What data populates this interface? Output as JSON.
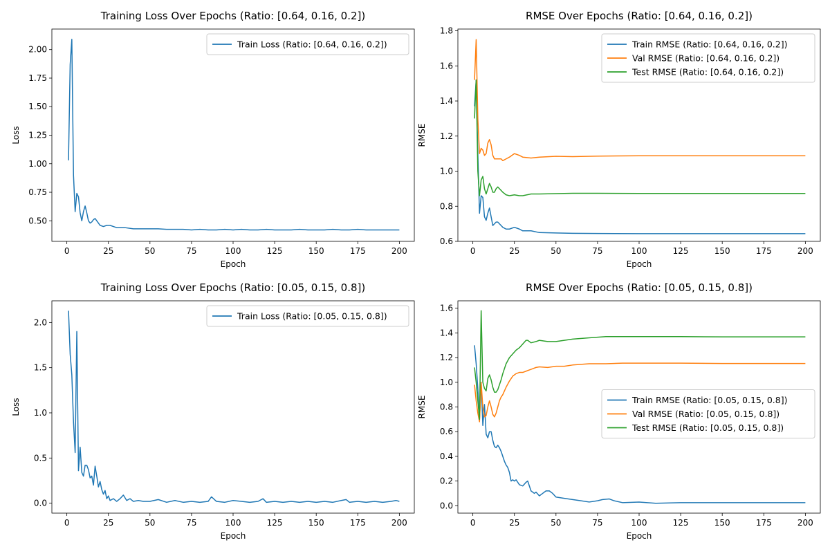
{
  "chart_data": [
    {
      "type": "line",
      "title": "Training Loss Over Epochs (Ratio: [0.64, 0.16, 0.2])",
      "xlabel": "Epoch",
      "ylabel": "Loss",
      "xlim": [
        -9,
        209
      ],
      "ylim": [
        0.32,
        2.18
      ],
      "xticks": [
        0,
        25,
        50,
        75,
        100,
        125,
        150,
        175,
        200
      ],
      "xtick_labels": [
        "0",
        "25",
        "50",
        "75",
        "100",
        "125",
        "150",
        "175",
        "200"
      ],
      "yticks": [
        0.5,
        0.75,
        1.0,
        1.25,
        1.5,
        1.75,
        2.0
      ],
      "ytick_labels": [
        "0.50",
        "0.75",
        "1.00",
        "1.25",
        "1.50",
        "1.75",
        "2.00"
      ],
      "legend_position": "top-right",
      "series": [
        {
          "name": "Train Loss (Ratio: [0.64, 0.16, 0.2])",
          "color": "#1f77b4",
          "x": [
            1,
            2,
            3,
            4,
            5,
            6,
            7,
            8,
            9,
            10,
            11,
            12,
            13,
            14,
            15,
            16,
            17,
            18,
            19,
            20,
            22,
            24,
            26,
            28,
            30,
            35,
            40,
            45,
            50,
            55,
            60,
            65,
            70,
            75,
            80,
            85,
            90,
            95,
            100,
            105,
            110,
            115,
            120,
            125,
            130,
            135,
            140,
            145,
            150,
            155,
            160,
            165,
            170,
            175,
            180,
            185,
            190,
            195,
            200
          ],
          "y": [
            1.03,
            1.87,
            2.09,
            0.9,
            0.58,
            0.74,
            0.71,
            0.57,
            0.5,
            0.58,
            0.63,
            0.57,
            0.5,
            0.48,
            0.49,
            0.51,
            0.52,
            0.5,
            0.48,
            0.46,
            0.45,
            0.46,
            0.46,
            0.45,
            0.44,
            0.44,
            0.43,
            0.43,
            0.43,
            0.43,
            0.425,
            0.425,
            0.425,
            0.42,
            0.425,
            0.42,
            0.42,
            0.425,
            0.42,
            0.425,
            0.42,
            0.42,
            0.425,
            0.42,
            0.42,
            0.42,
            0.425,
            0.42,
            0.42,
            0.42,
            0.425,
            0.42,
            0.42,
            0.425,
            0.42,
            0.42,
            0.42,
            0.42,
            0.42
          ]
        }
      ]
    },
    {
      "type": "line",
      "title": "RMSE Over Epochs (Ratio: [0.64, 0.16, 0.2])",
      "xlabel": "Epoch",
      "ylabel": "RMSE",
      "xlim": [
        -9,
        209
      ],
      "ylim": [
        0.6,
        1.81
      ],
      "xticks": [
        0,
        25,
        50,
        75,
        100,
        125,
        150,
        175,
        200
      ],
      "xtick_labels": [
        "0",
        "25",
        "50",
        "75",
        "100",
        "125",
        "150",
        "175",
        "200"
      ],
      "yticks": [
        0.6,
        0.8,
        1.0,
        1.2,
        1.4,
        1.6,
        1.8
      ],
      "ytick_labels": [
        "0.6",
        "0.8",
        "1.0",
        "1.2",
        "1.4",
        "1.6",
        "1.8"
      ],
      "legend_position": "top-right",
      "series": [
        {
          "name": "Train RMSE (Ratio: [0.64, 0.16, 0.2])",
          "color": "#1f77b4",
          "x": [
            1,
            2,
            3,
            4,
            5,
            6,
            7,
            8,
            9,
            10,
            11,
            12,
            13,
            14,
            15,
            16,
            17,
            18,
            20,
            22,
            25,
            28,
            30,
            35,
            40,
            50,
            60,
            75,
            100,
            125,
            150,
            175,
            200
          ],
          "y": [
            1.37,
            1.52,
            1.1,
            0.76,
            0.86,
            0.85,
            0.74,
            0.72,
            0.76,
            0.79,
            0.74,
            0.69,
            0.7,
            0.71,
            0.71,
            0.7,
            0.69,
            0.68,
            0.67,
            0.67,
            0.68,
            0.67,
            0.66,
            0.66,
            0.65,
            0.648,
            0.646,
            0.645,
            0.644,
            0.644,
            0.644,
            0.644,
            0.644
          ]
        },
        {
          "name": "Val RMSE (Ratio: [0.64, 0.16, 0.2])",
          "color": "#ff7f0e",
          "x": [
            1,
            2,
            3,
            4,
            5,
            6,
            7,
            8,
            9,
            10,
            11,
            12,
            13,
            14,
            15,
            16,
            17,
            18,
            20,
            22,
            25,
            28,
            30,
            35,
            40,
            50,
            60,
            75,
            100,
            125,
            150,
            175,
            200
          ],
          "y": [
            1.52,
            1.75,
            1.3,
            1.1,
            1.13,
            1.12,
            1.09,
            1.1,
            1.16,
            1.18,
            1.15,
            1.09,
            1.07,
            1.07,
            1.07,
            1.07,
            1.07,
            1.06,
            1.07,
            1.08,
            1.1,
            1.09,
            1.08,
            1.075,
            1.08,
            1.085,
            1.083,
            1.086,
            1.088,
            1.088,
            1.088,
            1.088,
            1.088
          ]
        },
        {
          "name": "Test RMSE (Ratio: [0.64, 0.16, 0.2])",
          "color": "#2ca02c",
          "x": [
            1,
            2,
            3,
            4,
            5,
            6,
            7,
            8,
            9,
            10,
            11,
            12,
            13,
            14,
            15,
            16,
            17,
            18,
            20,
            22,
            25,
            28,
            30,
            35,
            40,
            50,
            60,
            75,
            100,
            125,
            150,
            175,
            200
          ],
          "y": [
            1.3,
            1.52,
            1.0,
            0.86,
            0.95,
            0.97,
            0.9,
            0.87,
            0.9,
            0.93,
            0.91,
            0.88,
            0.88,
            0.9,
            0.91,
            0.9,
            0.89,
            0.88,
            0.865,
            0.86,
            0.865,
            0.86,
            0.86,
            0.87,
            0.87,
            0.872,
            0.874,
            0.874,
            0.873,
            0.873,
            0.873,
            0.873,
            0.873
          ]
        }
      ]
    },
    {
      "type": "line",
      "title": "Training Loss Over Epochs (Ratio: [0.05, 0.15, 0.8])",
      "xlabel": "Epoch",
      "ylabel": "Loss",
      "xlim": [
        -9,
        209
      ],
      "ylim": [
        -0.11,
        2.24
      ],
      "xticks": [
        0,
        25,
        50,
        75,
        100,
        125,
        150,
        175,
        200
      ],
      "xtick_labels": [
        "0",
        "25",
        "50",
        "75",
        "100",
        "125",
        "150",
        "175",
        "200"
      ],
      "yticks": [
        0.0,
        0.5,
        1.0,
        1.5,
        2.0
      ],
      "ytick_labels": [
        "0.0",
        "0.5",
        "1.0",
        "1.5",
        "2.0"
      ],
      "legend_position": "top-right",
      "series": [
        {
          "name": "Train Loss (Ratio: [0.05, 0.15, 0.8])",
          "color": "#1f77b4",
          "x": [
            1,
            2,
            3,
            4,
            5,
            6,
            7,
            8,
            9,
            10,
            11,
            12,
            13,
            14,
            15,
            16,
            17,
            18,
            19,
            20,
            21,
            22,
            23,
            24,
            25,
            26,
            28,
            30,
            32,
            34,
            36,
            38,
            40,
            43,
            46,
            50,
            55,
            60,
            65,
            70,
            75,
            80,
            85,
            87,
            90,
            95,
            100,
            105,
            110,
            115,
            118,
            120,
            125,
            130,
            135,
            140,
            145,
            150,
            155,
            160,
            165,
            168,
            170,
            175,
            180,
            185,
            190,
            195,
            198,
            200
          ],
          "y": [
            2.13,
            1.65,
            1.42,
            0.9,
            0.56,
            1.9,
            0.36,
            0.62,
            0.34,
            0.3,
            0.42,
            0.42,
            0.37,
            0.28,
            0.3,
            0.2,
            0.41,
            0.3,
            0.18,
            0.24,
            0.15,
            0.1,
            0.14,
            0.05,
            0.08,
            0.03,
            0.05,
            0.02,
            0.05,
            0.09,
            0.03,
            0.05,
            0.02,
            0.03,
            0.02,
            0.02,
            0.04,
            0.01,
            0.03,
            0.01,
            0.02,
            0.01,
            0.02,
            0.07,
            0.02,
            0.01,
            0.03,
            0.02,
            0.01,
            0.02,
            0.05,
            0.01,
            0.02,
            0.01,
            0.02,
            0.01,
            0.02,
            0.01,
            0.02,
            0.01,
            0.03,
            0.04,
            0.01,
            0.02,
            0.01,
            0.02,
            0.01,
            0.02,
            0.03,
            0.02
          ]
        }
      ]
    },
    {
      "type": "line",
      "title": "RMSE Over Epochs (Ratio: [0.05, 0.15, 0.8])",
      "xlabel": "Epoch",
      "ylabel": "RMSE",
      "xlim": [
        -9,
        209
      ],
      "ylim": [
        -0.06,
        1.66
      ],
      "xticks": [
        0,
        25,
        50,
        75,
        100,
        125,
        150,
        175,
        200
      ],
      "xtick_labels": [
        "0",
        "25",
        "50",
        "75",
        "100",
        "125",
        "150",
        "175",
        "200"
      ],
      "yticks": [
        0.0,
        0.2,
        0.4,
        0.6,
        0.8,
        1.0,
        1.2,
        1.4,
        1.6
      ],
      "ytick_labels": [
        "0.0",
        "0.2",
        "0.4",
        "0.6",
        "0.8",
        "1.0",
        "1.2",
        "1.4",
        "1.6"
      ],
      "legend_position": "center-right",
      "series": [
        {
          "name": "Train RMSE (Ratio: [0.05, 0.15, 0.8])",
          "color": "#1f77b4",
          "x": [
            1,
            2,
            3,
            4,
            5,
            6,
            7,
            8,
            9,
            10,
            11,
            12,
            13,
            14,
            15,
            16,
            17,
            18,
            19,
            20,
            21,
            22,
            23,
            24,
            25,
            26,
            27,
            28,
            30,
            32,
            33,
            35,
            37,
            38,
            40,
            42,
            44,
            46,
            48,
            50,
            55,
            60,
            65,
            70,
            75,
            78,
            82,
            85,
            90,
            100,
            110,
            125,
            150,
            175,
            200
          ],
          "y": [
            1.3,
            1.15,
            0.95,
            0.7,
            1.0,
            0.65,
            0.82,
            0.58,
            0.55,
            0.6,
            0.6,
            0.53,
            0.48,
            0.47,
            0.49,
            0.47,
            0.44,
            0.4,
            0.36,
            0.33,
            0.31,
            0.27,
            0.2,
            0.21,
            0.2,
            0.21,
            0.19,
            0.17,
            0.16,
            0.19,
            0.2,
            0.12,
            0.1,
            0.11,
            0.08,
            0.1,
            0.12,
            0.12,
            0.1,
            0.07,
            0.06,
            0.05,
            0.04,
            0.03,
            0.04,
            0.05,
            0.055,
            0.04,
            0.025,
            0.03,
            0.02,
            0.025,
            0.025,
            0.025,
            0.025
          ]
        },
        {
          "name": "Val RMSE (Ratio: [0.05, 0.15, 0.8])",
          "color": "#ff7f0e",
          "x": [
            1,
            2,
            3,
            4,
            5,
            6,
            7,
            8,
            9,
            10,
            11,
            12,
            13,
            14,
            15,
            16,
            17,
            18,
            20,
            22,
            24,
            26,
            28,
            30,
            32,
            34,
            36,
            38,
            40,
            45,
            50,
            55,
            60,
            70,
            80,
            90,
            100,
            125,
            150,
            175,
            200
          ],
          "y": [
            0.98,
            0.85,
            0.75,
            0.68,
            1.0,
            0.8,
            0.72,
            0.73,
            0.8,
            0.85,
            0.8,
            0.74,
            0.72,
            0.75,
            0.8,
            0.85,
            0.88,
            0.9,
            0.96,
            1.01,
            1.05,
            1.07,
            1.08,
            1.08,
            1.09,
            1.1,
            1.11,
            1.12,
            1.125,
            1.12,
            1.13,
            1.13,
            1.14,
            1.15,
            1.15,
            1.155,
            1.155,
            1.155,
            1.152,
            1.152,
            1.152
          ]
        },
        {
          "name": "Test RMSE (Ratio: [0.05, 0.15, 0.8])",
          "color": "#2ca02c",
          "x": [
            1,
            2,
            3,
            4,
            5,
            6,
            7,
            8,
            9,
            10,
            11,
            12,
            13,
            14,
            15,
            16,
            17,
            18,
            20,
            22,
            24,
            26,
            28,
            30,
            32,
            33,
            35,
            38,
            40,
            45,
            50,
            55,
            60,
            70,
            80,
            90,
            100,
            125,
            150,
            175,
            200
          ],
          "y": [
            1.12,
            1.0,
            0.85,
            0.7,
            1.58,
            1.0,
            0.95,
            0.93,
            1.03,
            1.06,
            1.02,
            0.96,
            0.92,
            0.92,
            0.94,
            0.98,
            1.02,
            1.07,
            1.15,
            1.2,
            1.23,
            1.26,
            1.28,
            1.31,
            1.34,
            1.34,
            1.32,
            1.33,
            1.34,
            1.33,
            1.33,
            1.34,
            1.35,
            1.36,
            1.37,
            1.37,
            1.37,
            1.37,
            1.368,
            1.368,
            1.368
          ]
        }
      ]
    }
  ]
}
